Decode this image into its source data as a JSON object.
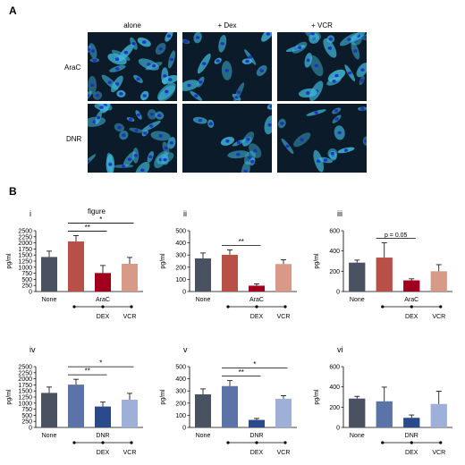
{
  "panels": {
    "a": "A",
    "b": "B"
  },
  "microscopy": {
    "columns": [
      "alone",
      "+ Dex",
      "+ VCR"
    ],
    "rows": [
      "AraC",
      "DNR"
    ]
  },
  "colors": {
    "none_bar": "#4a5160",
    "arac_alone": "#b85048",
    "arac_dex": "#a0001e",
    "arac_vcr": "#d89a88",
    "dnr_alone": "#5b73a6",
    "dnr_dex": "#2b4a8b",
    "dnr_vcr": "#9eb0d8",
    "cell_bg": "#0c1b29",
    "cell_fill": "#3fb8d8",
    "nucleus": "#1d2bc8"
  },
  "chart_data": [
    {
      "type": "bar",
      "panel": "i",
      "title": "figure",
      "categories": [
        "None",
        "AraC",
        "DEX",
        "VCR"
      ],
      "values": [
        1420,
        2060,
        760,
        1140
      ],
      "errors": [
        240,
        240,
        310,
        260
      ],
      "ylabel": "pg/ml",
      "ylim": [
        0,
        2500
      ],
      "yticks": [
        "0",
        "250",
        "500",
        "750",
        "1000",
        "1250",
        "1500",
        "1750",
        "2000",
        "2250",
        "2500"
      ],
      "group_label": "AraC",
      "group_sub": [
        "DEX",
        "VCR"
      ],
      "sig": [
        {
          "from": 1,
          "to": 2,
          "label": "**"
        },
        {
          "from": 1,
          "to": 3,
          "label": "*"
        }
      ],
      "style": "arac"
    },
    {
      "type": "bar",
      "panel": "ii",
      "title": "",
      "categories": [
        "None",
        "AraC",
        "DEX",
        "VCR"
      ],
      "values": [
        272,
        302,
        48,
        226
      ],
      "errors": [
        45,
        40,
        15,
        35
      ],
      "ylabel": "pg/ml",
      "ylim": [
        0,
        500
      ],
      "yticks": [
        "0",
        "100",
        "200",
        "300",
        "400",
        "500"
      ],
      "group_label": "AraC",
      "group_sub": [
        "DEX",
        "VCR"
      ],
      "sig": [
        {
          "from": 1,
          "to": 2,
          "label": "**"
        }
      ],
      "style": "arac"
    },
    {
      "type": "bar",
      "panel": "iii",
      "title": "",
      "categories": [
        "None",
        "AraC",
        "DEX",
        "VCR"
      ],
      "values": [
        285,
        335,
        110,
        200
      ],
      "errors": [
        25,
        145,
        15,
        65
      ],
      "ylabel": "pg/ml",
      "ylim": [
        0,
        600
      ],
      "yticks": [
        "0",
        "200",
        "400",
        "600"
      ],
      "group_label": "AraC",
      "group_sub": [
        "DEX",
        "VCR"
      ],
      "sig": [
        {
          "from": 1,
          "to": 2,
          "label": "p = 0.05"
        }
      ],
      "style": "arac"
    },
    {
      "type": "bar",
      "panel": "iv",
      "title": "",
      "categories": [
        "None",
        "DNR",
        "DEX",
        "VCR"
      ],
      "values": [
        1420,
        1760,
        860,
        1140
      ],
      "errors": [
        240,
        220,
        180,
        260
      ],
      "ylabel": "pg/ml",
      "ylim": [
        0,
        2500
      ],
      "yticks": [
        "0",
        "250",
        "500",
        "750",
        "1000",
        "1250",
        "1500",
        "1750",
        "2000",
        "2250",
        "2500"
      ],
      "group_label": "DNR",
      "group_sub": [
        "DEX",
        "VCR"
      ],
      "sig": [
        {
          "from": 1,
          "to": 2,
          "label": "**"
        },
        {
          "from": 1,
          "to": 3,
          "label": "*"
        }
      ],
      "style": "dnr"
    },
    {
      "type": "bar",
      "panel": "v",
      "title": "",
      "categories": [
        "None",
        "DNR",
        "DEX",
        "VCR"
      ],
      "values": [
        272,
        340,
        62,
        236
      ],
      "errors": [
        45,
        45,
        12,
        25
      ],
      "ylabel": "pg/ml",
      "ylim": [
        0,
        500
      ],
      "yticks": [
        "0",
        "100",
        "200",
        "300",
        "400",
        "500"
      ],
      "group_label": "DNR",
      "group_sub": [
        "DEX",
        "VCR"
      ],
      "sig": [
        {
          "from": 1,
          "to": 2,
          "label": "**"
        },
        {
          "from": 1,
          "to": 3,
          "label": "*"
        }
      ],
      "style": "dnr"
    },
    {
      "type": "bar",
      "panel": "vi",
      "title": "",
      "categories": [
        "None",
        "DNR",
        "DEX",
        "VCR"
      ],
      "values": [
        285,
        258,
        95,
        232
      ],
      "errors": [
        22,
        140,
        28,
        125
      ],
      "ylabel": "pg/ml",
      "ylim": [
        0,
        600
      ],
      "yticks": [
        "0",
        "200",
        "400",
        "600"
      ],
      "group_label": "DNR",
      "group_sub": [
        "DEX",
        "VCR"
      ],
      "sig": [],
      "style": "dnr"
    }
  ]
}
